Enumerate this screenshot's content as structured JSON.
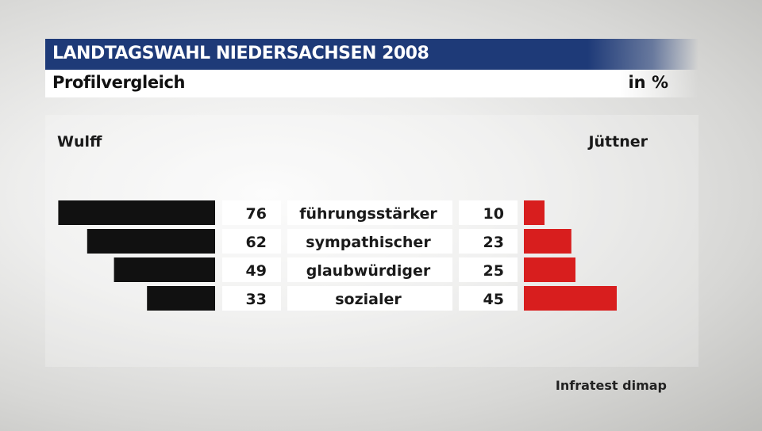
{
  "title": "LANDTAGSWAHL NIEDERSACHSEN 2008",
  "subtitle": "Profilvergleich",
  "unit": "in %",
  "source": "Infratest dimap",
  "chart_data": {
    "type": "bar",
    "orientation": "horizontal-diverging",
    "categories": [
      "führungsstärker",
      "sympathischer",
      "glaubwürdiger",
      "sozialer"
    ],
    "series": [
      {
        "name": "Wulff",
        "values": [
          76,
          62,
          49,
          33
        ],
        "color": "#111111",
        "side": "left"
      },
      {
        "name": "Jüttner",
        "values": [
          10,
          23,
          25,
          45
        ],
        "color": "#d81e1e",
        "side": "right"
      }
    ],
    "grid": false
  }
}
